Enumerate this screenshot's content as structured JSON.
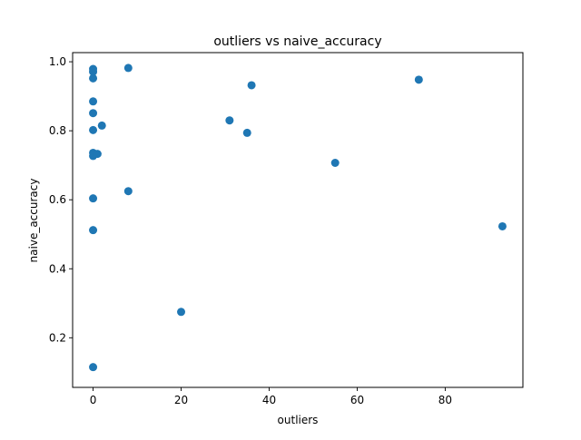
{
  "chart_data": {
    "type": "scatter",
    "title": "outliers vs naive_accuracy",
    "xlabel": "outliers",
    "ylabel": "naive_accuracy",
    "xlim": [
      -4.65,
      97.65
    ],
    "ylim": [
      0.0562,
      1.0265
    ],
    "xticks": [
      0,
      20,
      40,
      60,
      80
    ],
    "xtick_labels": [
      "0",
      "20",
      "40",
      "60",
      "80"
    ],
    "yticks": [
      0.2,
      0.4,
      0.6,
      0.8,
      1.0
    ],
    "ytick_labels": [
      "0.2",
      "0.4",
      "0.6",
      "0.8",
      "1.0"
    ],
    "grid": false,
    "marker_color": "#1f77b4",
    "points": [
      {
        "x": 0,
        "y": 0.979
      },
      {
        "x": 0,
        "y": 0.971
      },
      {
        "x": 0,
        "y": 0.952
      },
      {
        "x": 0,
        "y": 0.885
      },
      {
        "x": 0,
        "y": 0.851
      },
      {
        "x": 0,
        "y": 0.802
      },
      {
        "x": 0,
        "y": 0.736
      },
      {
        "x": 0,
        "y": 0.727
      },
      {
        "x": 1,
        "y": 0.733
      },
      {
        "x": 0,
        "y": 0.604
      },
      {
        "x": 0,
        "y": 0.512
      },
      {
        "x": 0,
        "y": 0.115
      },
      {
        "x": 2,
        "y": 0.815
      },
      {
        "x": 8,
        "y": 0.982
      },
      {
        "x": 8,
        "y": 0.625
      },
      {
        "x": 20,
        "y": 0.275
      },
      {
        "x": 31,
        "y": 0.83
      },
      {
        "x": 35,
        "y": 0.794
      },
      {
        "x": 36,
        "y": 0.932
      },
      {
        "x": 55,
        "y": 0.707
      },
      {
        "x": 74,
        "y": 0.948
      },
      {
        "x": 93,
        "y": 0.523
      }
    ]
  }
}
